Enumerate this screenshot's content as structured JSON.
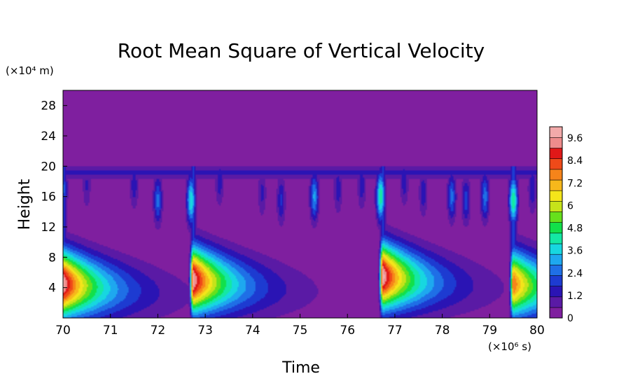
{
  "chart_data": {
    "type": "heatmap",
    "title": "Root Mean Square of Vertical Velocity",
    "xlabel": "Time",
    "ylabel": "Height",
    "x_unit": "(×10⁶ s)",
    "y_unit": "(×10⁴ m)",
    "xlim": [
      70,
      80
    ],
    "ylim": [
      0,
      30
    ],
    "x_ticks": [
      "70",
      "71",
      "72",
      "73",
      "74",
      "75",
      "76",
      "77",
      "78",
      "79",
      "80"
    ],
    "y_ticks": [
      "4",
      "8",
      "12",
      "16",
      "20",
      "24",
      "28"
    ],
    "colorbar": {
      "range": [
        0,
        10.2
      ],
      "labels": [
        "0",
        "1.2",
        "2.4",
        "3.6",
        "4.8",
        "6",
        "7.2",
        "8.4",
        "9.6"
      ],
      "colors": [
        "#7f1f9f",
        "#5a1aa5",
        "#2a14b4",
        "#1d3bd1",
        "#1f6fe6",
        "#1ea8ef",
        "#17d7e0",
        "#14e8a4",
        "#12e04a",
        "#66e01c",
        "#c6e31a",
        "#f4e51a",
        "#f7b81b",
        "#f6841a",
        "#ef4a19",
        "#e01818",
        "#ee8c8c",
        "#f2aaaa"
      ]
    },
    "background_value": 0.3,
    "tropopause_height": 20,
    "surface_bursts": [
      {
        "time": 70.0,
        "height": 4.5,
        "peak": 10.0
      },
      {
        "time": 72.75,
        "height": 5.0,
        "peak": 9.9
      },
      {
        "time": 76.75,
        "height": 5.5,
        "peak": 10.0
      },
      {
        "time": 79.5,
        "height": 4.5,
        "peak": 8.0
      }
    ],
    "upper_plumes": [
      {
        "time": 70.0,
        "height": 17.0,
        "peak": 2.4
      },
      {
        "time": 70.5,
        "height": 17.5,
        "peak": 1.2
      },
      {
        "time": 71.5,
        "height": 17.5,
        "peak": 1.5
      },
      {
        "time": 72.0,
        "height": 15.5,
        "peak": 2.5
      },
      {
        "time": 72.7,
        "height": 15.5,
        "peak": 4.0
      },
      {
        "time": 73.3,
        "height": 18.0,
        "peak": 1.5
      },
      {
        "time": 74.2,
        "height": 16.5,
        "peak": 1.3
      },
      {
        "time": 74.6,
        "height": 15.5,
        "peak": 1.8
      },
      {
        "time": 75.3,
        "height": 16.0,
        "peak": 3.0
      },
      {
        "time": 75.8,
        "height": 17.0,
        "peak": 1.5
      },
      {
        "time": 76.3,
        "height": 17.5,
        "peak": 1.5
      },
      {
        "time": 76.7,
        "height": 16.0,
        "peak": 4.5
      },
      {
        "time": 77.2,
        "height": 18.0,
        "peak": 1.5
      },
      {
        "time": 77.6,
        "height": 16.5,
        "peak": 1.5
      },
      {
        "time": 78.2,
        "height": 16.0,
        "peak": 2.5
      },
      {
        "time": 78.5,
        "height": 15.5,
        "peak": 2.0
      },
      {
        "time": 78.9,
        "height": 16.0,
        "peak": 2.6
      },
      {
        "time": 79.5,
        "height": 15.5,
        "peak": 4.5
      },
      {
        "time": 79.9,
        "height": 17.0,
        "peak": 1.6
      }
    ],
    "grid": false,
    "legend": "colorbar-right"
  }
}
